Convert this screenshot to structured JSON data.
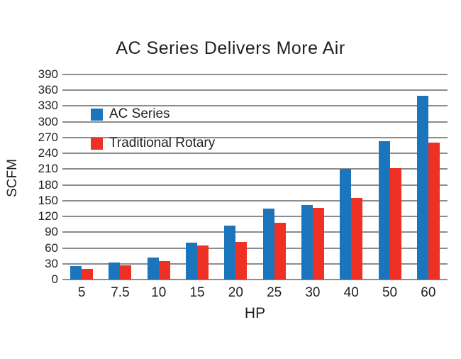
{
  "title": "AC Series Delivers More Air",
  "colors": {
    "ac_series_blue": "#1b75bc",
    "traditional_rotary_red": "#ee3124",
    "gridline_gray": "#8c8c8c",
    "text": "#231f20"
  },
  "legend": {
    "items": [
      {
        "label": "AC Series",
        "color": "#1b75bc"
      },
      {
        "label": "Traditional Rotary",
        "color": "#ee3124"
      }
    ]
  },
  "chart_data": {
    "type": "bar",
    "title": "AC Series Delivers More Air",
    "xlabel": "HP",
    "ylabel": "SCFM",
    "categories": [
      "5",
      "7.5",
      "10",
      "15",
      "20",
      "25",
      "30",
      "40",
      "50",
      "60"
    ],
    "series": [
      {
        "name": "AC Series",
        "color": "#1b75bc",
        "values": [
          25,
          33,
          42,
          70,
          102,
          135,
          142,
          210,
          263,
          350
        ]
      },
      {
        "name": "Traditional Rotary",
        "color": "#ee3124",
        "values": [
          20,
          27,
          35,
          65,
          72,
          108,
          136,
          155,
          212,
          260
        ]
      }
    ],
    "ylim": [
      0,
      390
    ],
    "ytick_step": 30,
    "yticks": [
      0,
      30,
      60,
      90,
      120,
      150,
      180,
      210,
      240,
      270,
      300,
      330,
      360,
      390
    ],
    "grid": true,
    "legend_position": "upper-left-inside"
  }
}
